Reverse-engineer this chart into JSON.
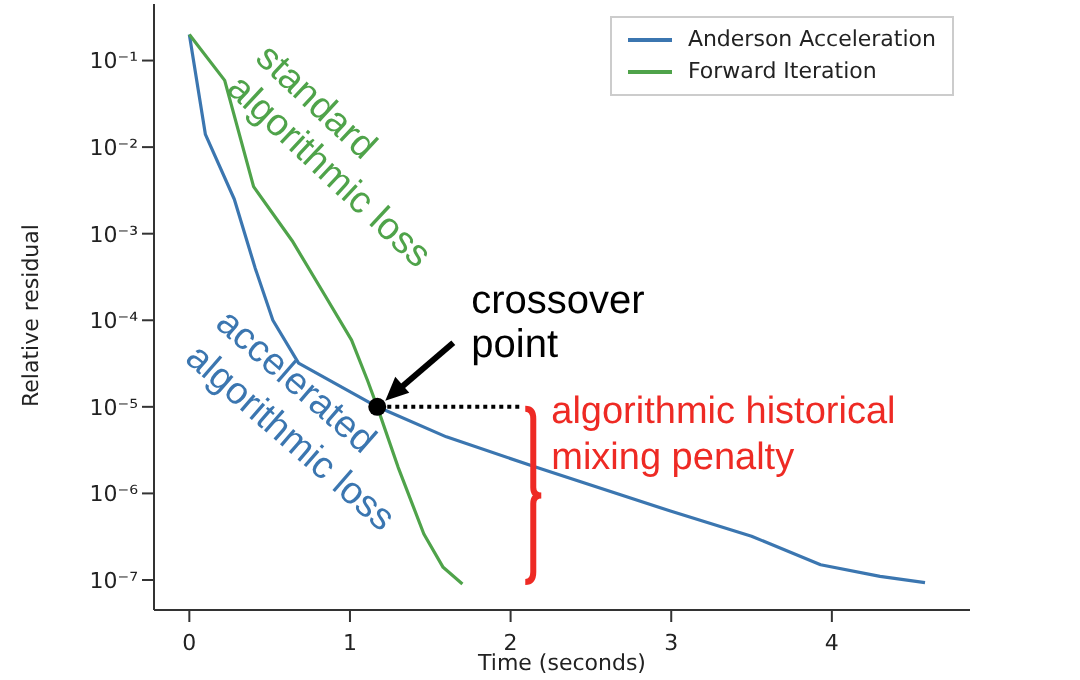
{
  "chart_data": {
    "type": "line",
    "xlabel": "Time (seconds)",
    "ylabel": "Relative residual",
    "log": "y",
    "grid": false,
    "legend": "top right",
    "marker": "none",
    "line_style": "solid",
    "xlim": [
      -0.22,
      4.86
    ],
    "xticks": [
      0,
      1,
      2,
      3,
      4
    ],
    "ylim": [
      4.5e-08,
      0.45
    ],
    "yticks": [
      {
        "value": 1e-07,
        "label": "10⁻⁷"
      },
      {
        "value": 1e-06,
        "label": "10⁻⁶"
      },
      {
        "value": 1e-05,
        "label": "10⁻⁵"
      },
      {
        "value": 0.0001,
        "label": "10⁻⁴"
      },
      {
        "value": 0.001,
        "label": "10⁻³"
      },
      {
        "value": 0.01,
        "label": "10⁻²"
      },
      {
        "value": 0.1,
        "label": "10⁻¹"
      }
    ],
    "series": [
      {
        "name": "Anderson Acceleration",
        "color": "#3b76b0",
        "x": [
          0,
          0.1,
          0.28,
          0.41,
          0.52,
          0.68,
          1.17,
          1.6,
          2.16,
          2.99,
          3.5,
          3.93,
          4.3,
          4.58
        ],
        "values": [
          0.2,
          0.014,
          0.0025,
          0.0004,
          0.0001,
          3.2e-05,
          1e-05,
          4.5e-06,
          2e-06,
          6.3e-07,
          3.2e-07,
          1.5e-07,
          1.1e-07,
          9.3e-08
        ]
      },
      {
        "name": "Forward Iteration",
        "color": "#4fa34a",
        "x": [
          0,
          0.22,
          0.4,
          0.64,
          0.84,
          1.01,
          1.11,
          1.17,
          1.3,
          1.46,
          1.58,
          1.7
        ],
        "values": [
          0.2,
          0.059,
          0.0035,
          0.00083,
          0.0002,
          5.9e-05,
          2e-05,
          1e-05,
          2e-06,
          3.4e-07,
          1.4e-07,
          9e-08
        ]
      }
    ],
    "annotations": [
      "standard\nalgorithmic loss",
      "accelerated\nalgorithmic loss",
      {
        "text": "crossover\npoint",
        "x": 1.17,
        "y": 1e-05
      },
      "algorithmic historical\nmixing penalty"
    ]
  }
}
